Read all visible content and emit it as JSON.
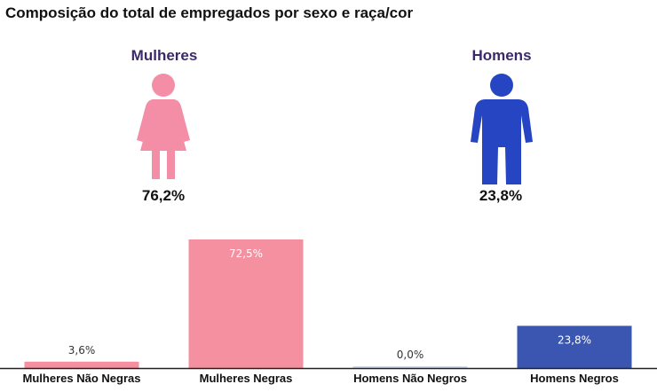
{
  "title": "Composição do total de empregados por sexo e raça/cor",
  "colors": {
    "women": "#f4909f",
    "women_figure": "#f48ea6",
    "men": "#3a56b0",
    "men_figure": "#2645c2",
    "sex_label": "#3b2a6b",
    "men_nonblack_bar": "#cfd8ee"
  },
  "sexes": [
    {
      "label": "Mulheres",
      "percent": "76,2%",
      "icon": "woman-icon"
    },
    {
      "label": "Homens",
      "percent": "23,8%",
      "icon": "man-icon"
    }
  ],
  "chart_data": {
    "type": "bar",
    "categories": [
      "Mulheres Não Negras",
      "Mulheres Negras",
      "Homens Não Negros",
      "Homens Negros"
    ],
    "values": [
      3.6,
      72.5,
      0.0,
      23.8
    ],
    "value_labels": [
      "3,6%",
      "72,5%",
      "0,0%",
      "23,8%"
    ],
    "ylim": [
      0,
      80
    ],
    "grid": false
  }
}
